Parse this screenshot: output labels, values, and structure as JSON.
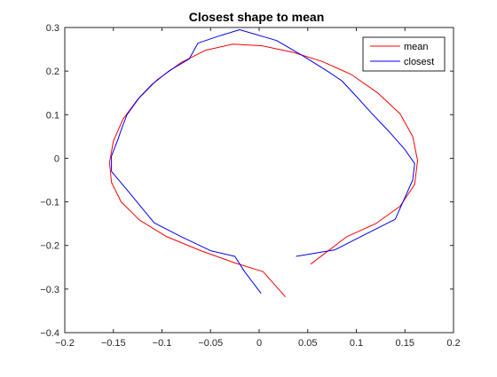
{
  "chart_data": {
    "type": "line",
    "title": "Closest shape to mean",
    "xlabel": "",
    "ylabel": "",
    "xlim": [
      -0.2,
      0.2
    ],
    "ylim": [
      -0.4,
      0.3
    ],
    "xticks": [
      -0.2,
      -0.15,
      -0.1,
      -0.05,
      0,
      0.05,
      0.1,
      0.15,
      0.2
    ],
    "xtick_labels": [
      "-0.2",
      "-0.15",
      "-0.1",
      "-0.05",
      "0",
      "0.05",
      "0.1",
      "0.15",
      "0.2"
    ],
    "yticks": [
      -0.4,
      -0.3,
      -0.2,
      -0.1,
      0,
      0.1,
      0.2,
      0.3
    ],
    "ytick_labels": [
      "-0.4",
      "-0.3",
      "-0.2",
      "-0.1",
      "0",
      "0.1",
      "0.2",
      "0.3"
    ],
    "grid": false,
    "legend_position": "top-right",
    "series": [
      {
        "name": "mean",
        "color": "#ff0000",
        "points": [
          [
            0.027,
            -0.318
          ],
          [
            0.004,
            -0.26
          ],
          [
            -0.025,
            -0.24
          ],
          [
            -0.06,
            -0.212
          ],
          [
            -0.095,
            -0.18
          ],
          [
            -0.123,
            -0.142
          ],
          [
            -0.142,
            -0.1
          ],
          [
            -0.152,
            -0.055
          ],
          [
            -0.154,
            -0.01
          ],
          [
            -0.15,
            0.04
          ],
          [
            -0.14,
            0.09
          ],
          [
            -0.125,
            0.135
          ],
          [
            -0.105,
            0.18
          ],
          [
            -0.08,
            0.22
          ],
          [
            -0.055,
            0.248
          ],
          [
            -0.027,
            0.262
          ],
          [
            0.003,
            0.258
          ],
          [
            0.035,
            0.243
          ],
          [
            0.065,
            0.222
          ],
          [
            0.095,
            0.192
          ],
          [
            0.122,
            0.15
          ],
          [
            0.145,
            0.102
          ],
          [
            0.158,
            0.05
          ],
          [
            0.163,
            -0.005
          ],
          [
            0.16,
            -0.06
          ],
          [
            0.145,
            -0.11
          ],
          [
            0.12,
            -0.15
          ],
          [
            0.09,
            -0.18
          ],
          [
            0.053,
            -0.243
          ]
        ]
      },
      {
        "name": "closest",
        "color": "#0000ff",
        "points": [
          [
            0.002,
            -0.31
          ],
          [
            -0.015,
            -0.26
          ],
          [
            -0.025,
            -0.225
          ],
          [
            -0.05,
            -0.212
          ],
          [
            -0.08,
            -0.18
          ],
          [
            -0.108,
            -0.148
          ],
          [
            -0.135,
            -0.075
          ],
          [
            -0.152,
            -0.03
          ],
          [
            -0.152,
            0.005
          ],
          [
            -0.145,
            0.045
          ],
          [
            -0.142,
            0.065
          ],
          [
            -0.136,
            0.1
          ],
          [
            -0.123,
            0.14
          ],
          [
            -0.11,
            0.17
          ],
          [
            -0.093,
            0.2
          ],
          [
            -0.072,
            0.228
          ],
          [
            -0.063,
            0.264
          ],
          [
            -0.042,
            0.28
          ],
          [
            -0.02,
            0.295
          ],
          [
            0.018,
            0.27
          ],
          [
            0.045,
            0.235
          ],
          [
            0.07,
            0.2
          ],
          [
            0.085,
            0.178
          ],
          [
            0.1,
            0.142
          ],
          [
            0.115,
            0.105
          ],
          [
            0.135,
            0.058
          ],
          [
            0.15,
            0.02
          ],
          [
            0.16,
            -0.012
          ],
          [
            0.158,
            -0.05
          ],
          [
            0.14,
            -0.14
          ],
          [
            0.1,
            -0.185
          ],
          [
            0.078,
            -0.21
          ],
          [
            0.038,
            -0.225
          ]
        ]
      }
    ]
  }
}
